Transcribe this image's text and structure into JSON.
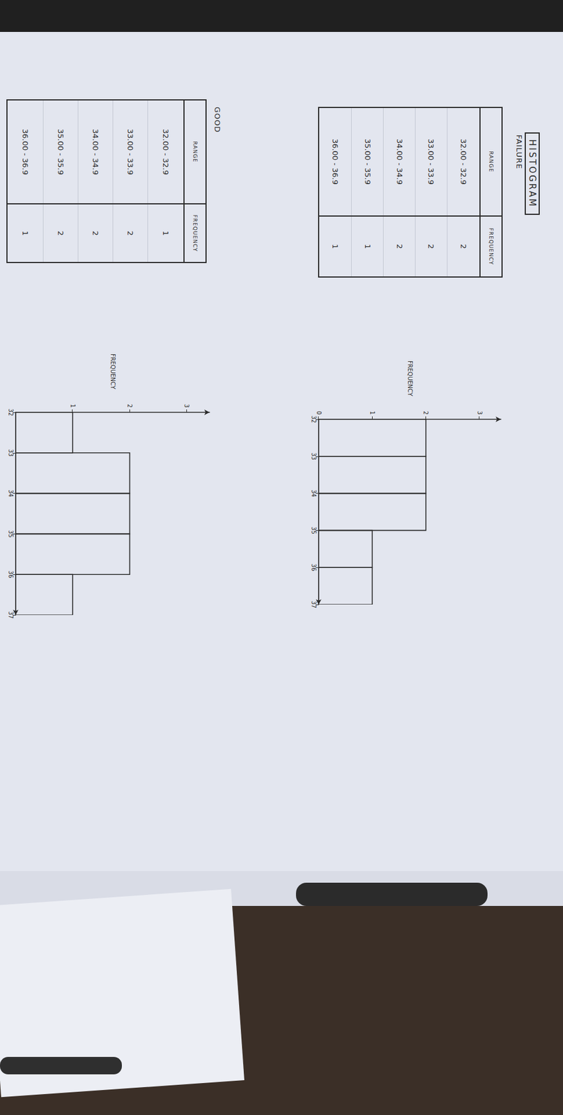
{
  "title": "HISTOGRAM",
  "tables": [
    {
      "title": "FAILURE",
      "columns": [
        "RANGE",
        "FREQUENCY"
      ],
      "rows": [
        [
          "32.00 - 32.9",
          2
        ],
        [
          "33.00 - 33.9",
          2
        ],
        [
          "34.00 - 34.9",
          2
        ],
        [
          "35.00 - 35.9",
          1
        ],
        [
          "36.00 - 36.9",
          1
        ]
      ]
    },
    {
      "title": "GOOD",
      "columns": [
        "RANGE",
        "FREQUENCY"
      ],
      "rows": [
        [
          "32.00 - 32.9",
          1
        ],
        [
          "33.00 - 33.9",
          2
        ],
        [
          "34.00 - 34.9",
          2
        ],
        [
          "35.00 - 35.9",
          2
        ],
        [
          "36.00 - 36.9",
          1
        ]
      ]
    }
  ],
  "chart_data": [
    {
      "type": "histogram",
      "y_label": "FREQUENCY",
      "bins": [
        32,
        33,
        34,
        35,
        36,
        37
      ],
      "values": [
        2,
        2,
        2,
        1,
        1
      ],
      "xlim": [
        32,
        37
      ],
      "xticks": [
        32,
        33,
        34,
        35,
        36,
        37
      ],
      "ylim": [
        0,
        3.4
      ],
      "yticks": [
        0,
        1,
        2,
        3
      ],
      "color": "#2a2a2a",
      "grid": false
    },
    {
      "type": "histogram",
      "y_label": "FREQUENCY",
      "bins": [
        32,
        33,
        34,
        35,
        36,
        37
      ],
      "values": [
        1,
        2,
        2,
        2,
        1
      ],
      "xlim": [
        32,
        37
      ],
      "xticks": [
        32,
        33,
        34,
        35,
        36,
        37
      ],
      "ylim": [
        0,
        3.4
      ],
      "yticks": [
        1,
        2,
        3
      ],
      "color": "#2a2a2a",
      "grid": false
    }
  ]
}
